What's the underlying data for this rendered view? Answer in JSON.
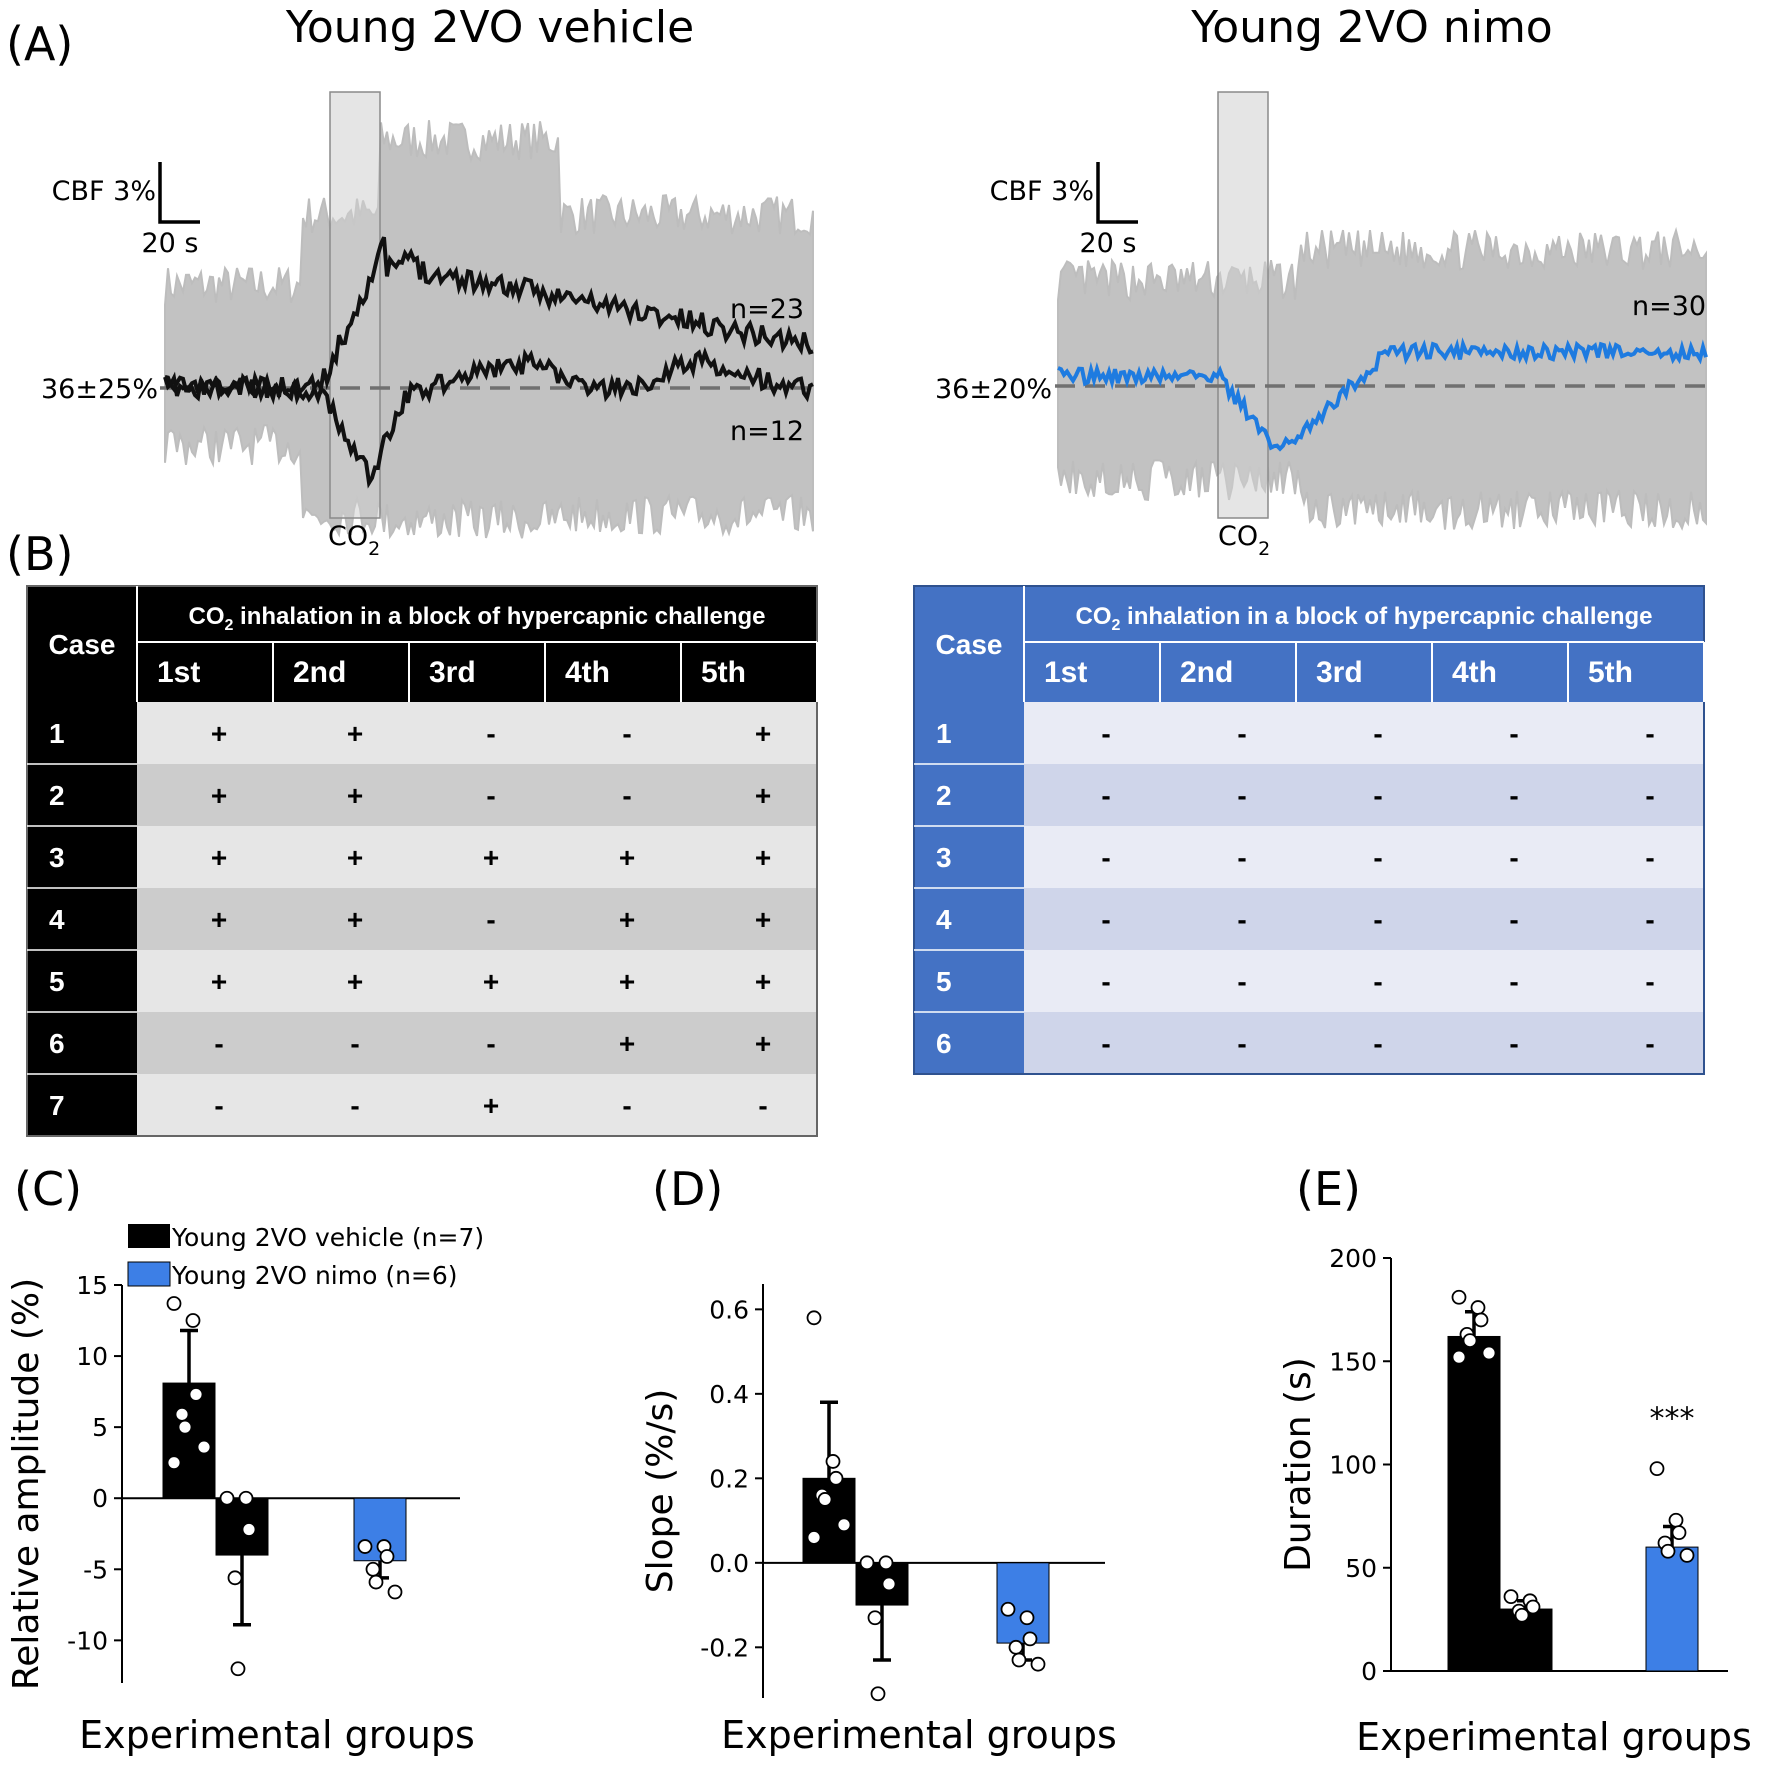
{
  "figure": {
    "panel_labels": [
      "(A)",
      "(B)",
      "(C)",
      "(D)",
      "(E)"
    ]
  },
  "traces": {
    "vehicle": {
      "title": "Young 2VO vehicle",
      "scale_y": "CBF 3%",
      "scale_x": "20 s",
      "baseline": "36±25%",
      "n_upper": "n=23",
      "n_lower": "n=12",
      "stim_main": "CO",
      "stim_sub": "2"
    },
    "nimo": {
      "title": "Young 2VO nimo",
      "scale_y": "CBF 3%",
      "scale_x": "20 s",
      "baseline": "36±20%",
      "n_label": "n=30",
      "stim_main": "CO",
      "stim_sub": "2"
    },
    "colors": {
      "shade": "#bfbfbf",
      "window": "#d3d3d3",
      "vehicle": "#111111",
      "nimo": "#1e7be0",
      "baseline": "#707070"
    }
  },
  "tables": {
    "header_pre": "CO",
    "header_sub": "2",
    "header_post": " inhalation in a block of hypercapnic challenge",
    "case_label": "Case",
    "columns": [
      "1st",
      "2nd",
      "3rd",
      "4th",
      "5th"
    ],
    "vehicle": {
      "header_color": "#000000",
      "row_colors": [
        "#e6e6e6",
        "#cccccc"
      ],
      "rows": [
        {
          "case": "1",
          "cells": [
            "+",
            "+",
            "-",
            "-",
            "+"
          ]
        },
        {
          "case": "2",
          "cells": [
            "+",
            "+",
            "-",
            "-",
            "+"
          ]
        },
        {
          "case": "3",
          "cells": [
            "+",
            "+",
            "+",
            "+",
            "+"
          ]
        },
        {
          "case": "4",
          "cells": [
            "+",
            "+",
            "-",
            "+",
            "+"
          ]
        },
        {
          "case": "5",
          "cells": [
            "+",
            "+",
            "+",
            "+",
            "+"
          ]
        },
        {
          "case": "6",
          "cells": [
            "-",
            "-",
            "-",
            "+",
            "+"
          ]
        },
        {
          "case": "7",
          "cells": [
            "-",
            "-",
            "+",
            "-",
            "-"
          ]
        }
      ]
    },
    "nimo": {
      "header_color": "#4472c4",
      "row_colors": [
        "#e9ebf5",
        "#cfd5ea"
      ],
      "rows": [
        {
          "case": "1",
          "cells": [
            "-",
            "-",
            "-",
            "-",
            "-"
          ]
        },
        {
          "case": "2",
          "cells": [
            "-",
            "-",
            "-",
            "-",
            "-"
          ]
        },
        {
          "case": "3",
          "cells": [
            "-",
            "-",
            "-",
            "-",
            "-"
          ]
        },
        {
          "case": "4",
          "cells": [
            "-",
            "-",
            "-",
            "-",
            "-"
          ]
        },
        {
          "case": "5",
          "cells": [
            "-",
            "-",
            "-",
            "-",
            "-"
          ]
        },
        {
          "case": "6",
          "cells": [
            "-",
            "-",
            "-",
            "-",
            "-"
          ]
        }
      ]
    }
  },
  "legend": {
    "items": [
      {
        "label": "Young 2VO vehicle (n=7)",
        "color": "#000000"
      },
      {
        "label": "Young 2VO nimo  (n=6)",
        "color": "#3d7fe6"
      }
    ]
  },
  "chart_data": [
    {
      "type": "bar",
      "panel": "(C)",
      "xlabel": "Experimental groups",
      "ylabel": "Relative amplitude (%)",
      "ylim": [
        -13,
        15
      ],
      "yticks": [
        15,
        10,
        5,
        0,
        -5,
        -10
      ],
      "series": [
        {
          "name": "Young 2VO vehicle (+)",
          "color": "#000000",
          "value": 8.1,
          "error": 3.7,
          "points": [
            13.7,
            12.5,
            7.3,
            5.9,
            5.0,
            3.6,
            2.5
          ]
        },
        {
          "name": "Young 2VO vehicle (-)",
          "color": "#000000",
          "value": -4.0,
          "error": 4.9,
          "points": [
            0.0,
            0.0,
            -2.2,
            -5.6,
            -12.0
          ]
        },
        {
          "name": "Young 2VO nimo",
          "color": "#3d7fe6",
          "value": -4.4,
          "error": 1.2,
          "points": [
            -3.4,
            -3.4,
            -4.1,
            -5.0,
            -5.9,
            -6.6
          ]
        }
      ]
    },
    {
      "type": "bar",
      "panel": "(D)",
      "xlabel": "Experimental groups",
      "ylabel": "Slope (%/s)",
      "ylim": [
        -0.32,
        0.66
      ],
      "yticks": [
        0.6,
        0.4,
        0.2,
        0.0,
        -0.2
      ],
      "ytick_labels": [
        "0.6",
        "0.4",
        "0.2",
        "0.0",
        "-0.2"
      ],
      "series": [
        {
          "name": "Young 2VO vehicle (+)",
          "color": "#000000",
          "value": 0.2,
          "error": 0.18,
          "points": [
            0.58,
            0.24,
            0.2,
            0.16,
            0.15,
            0.09,
            0.06
          ]
        },
        {
          "name": "Young 2VO vehicle (-)",
          "color": "#000000",
          "value": -0.1,
          "error": 0.13,
          "points": [
            0.0,
            0.0,
            -0.05,
            -0.13,
            -0.31
          ]
        },
        {
          "name": "Young 2VO nimo",
          "color": "#3d7fe6",
          "value": -0.19,
          "error": 0.04,
          "points": [
            -0.11,
            -0.13,
            -0.18,
            -0.2,
            -0.23,
            -0.24
          ]
        }
      ]
    },
    {
      "type": "bar",
      "panel": "(E)",
      "xlabel": "Experimental groups",
      "ylabel": "Duration (s)",
      "ylim": [
        0,
        200
      ],
      "yticks": [
        200,
        150,
        100,
        50,
        0
      ],
      "annotation": "***",
      "series": [
        {
          "name": "Young 2VO vehicle (+)",
          "color": "#000000",
          "value": 162,
          "error": 12,
          "points": [
            181,
            176,
            170,
            163,
            160,
            154,
            152
          ]
        },
        {
          "name": "Young 2VO vehicle (-)",
          "color": "#000000",
          "value": 30,
          "error": 4,
          "points": [
            36,
            34,
            31,
            29,
            27
          ]
        },
        {
          "name": "Young 2VO nimo",
          "color": "#3d7fe6",
          "value": 60,
          "error": 10,
          "points": [
            98,
            73,
            67,
            62,
            58,
            56
          ]
        }
      ]
    }
  ]
}
